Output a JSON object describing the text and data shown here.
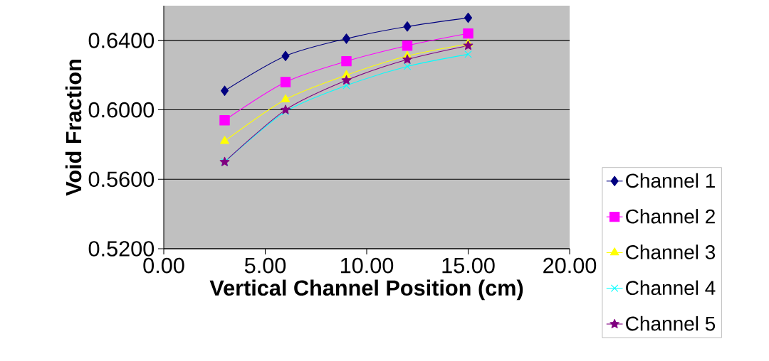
{
  "chart_data": {
    "type": "line",
    "xlabel": "Vertical Channel Position (cm)",
    "ylabel": "Void Fraction",
    "x": [
      3,
      6,
      9,
      12,
      15
    ],
    "series": [
      {
        "name": "Channel 1",
        "color": "#000080",
        "marker": "diamond",
        "values": [
          0.611,
          0.631,
          0.641,
          0.648,
          0.653
        ]
      },
      {
        "name": "Channel 2",
        "color": "#ff00ff",
        "marker": "square",
        "values": [
          0.594,
          0.616,
          0.628,
          0.637,
          0.644
        ]
      },
      {
        "name": "Channel 3",
        "color": "#ffff00",
        "marker": "triangle",
        "values": [
          0.582,
          0.606,
          0.62,
          0.631,
          0.638
        ]
      },
      {
        "name": "Channel 4",
        "color": "#00ffff",
        "marker": "cross",
        "values": [
          0.57,
          0.599,
          0.614,
          0.625,
          0.632
        ]
      },
      {
        "name": "Channel 5",
        "color": "#800080",
        "marker": "star",
        "values": [
          0.57,
          0.6,
          0.617,
          0.629,
          0.637
        ]
      }
    ],
    "xlim": [
      0,
      20
    ],
    "ylim": [
      0.52,
      0.66
    ],
    "xticks": [
      {
        "value": 0,
        "label": "0.00"
      },
      {
        "value": 5,
        "label": "5.00"
      },
      {
        "value": 10,
        "label": "10.00"
      },
      {
        "value": 15,
        "label": "15.00"
      },
      {
        "value": 20,
        "label": "20.00"
      }
    ],
    "yticks": [
      {
        "value": 0.52,
        "label": "0.5200"
      },
      {
        "value": 0.56,
        "label": "0.5600"
      },
      {
        "value": 0.6,
        "label": "0.6000"
      },
      {
        "value": 0.64,
        "label": "0.6400"
      }
    ],
    "grid": "y",
    "legend": "bottom right",
    "line_style": "solid"
  }
}
